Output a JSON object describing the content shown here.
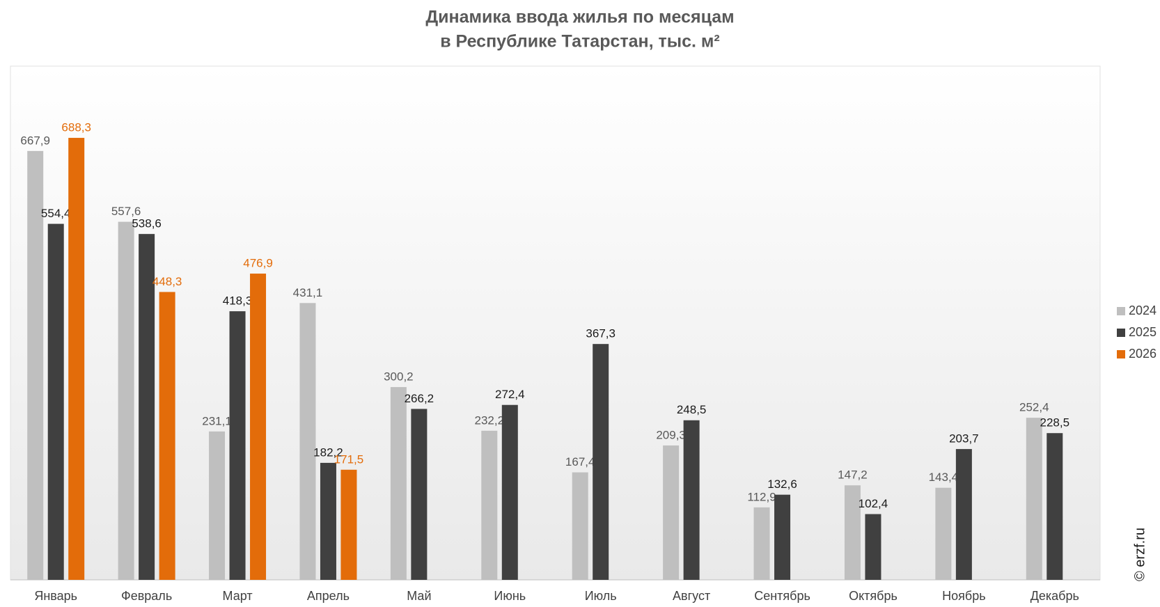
{
  "chart_data": {
    "type": "bar",
    "title": [
      "Динамика ввода жилья по месяцам",
      "в Республике Татарстан, тыс. м²"
    ],
    "categories": [
      "Январь",
      "Февраль",
      "Март",
      "Апрель",
      "Май",
      "Июнь",
      "Июль",
      "Август",
      "Сентябрь",
      "Октябрь",
      "Ноябрь",
      "Декабрь"
    ],
    "series": [
      {
        "name": "2024",
        "color": "#bfbfbf",
        "label_color": "#595959",
        "values": [
          667.9,
          557.6,
          231.1,
          431.1,
          300.2,
          232.2,
          167.4,
          209.3,
          112.9,
          147.2,
          143.4,
          252.4
        ],
        "value_labels": [
          "667,9",
          "557,6",
          "231,1",
          "431,1",
          "300,2",
          "232,2",
          "167,4",
          "209,3",
          "112,9",
          "147,2",
          "143,4",
          "252,4"
        ]
      },
      {
        "name": "2025",
        "color": "#404040",
        "label_color": "#1a1a1a",
        "values": [
          554.4,
          538.6,
          418.3,
          182.2,
          266.2,
          272.4,
          367.3,
          248.5,
          132.6,
          102.4,
          203.7,
          228.5
        ],
        "value_labels": [
          "554,4",
          "538,6",
          "418,3",
          "182,2",
          "266,2",
          "272,4",
          "367,3",
          "248,5",
          "132,6",
          "102,4",
          "203,7",
          "228,5"
        ]
      },
      {
        "name": "2026",
        "color": "#e36c0a",
        "label_color": "#e36c0a",
        "values": [
          688.3,
          448.3,
          476.9,
          171.5,
          null,
          null,
          null,
          null,
          null,
          null,
          null,
          null
        ],
        "value_labels": [
          "688,3",
          "448,3",
          "476,9",
          "171,5",
          null,
          null,
          null,
          null,
          null,
          null,
          null,
          null
        ]
      }
    ],
    "ylim": [
      0,
      800
    ],
    "legend": "right",
    "annotation": "© erzf.ru"
  }
}
